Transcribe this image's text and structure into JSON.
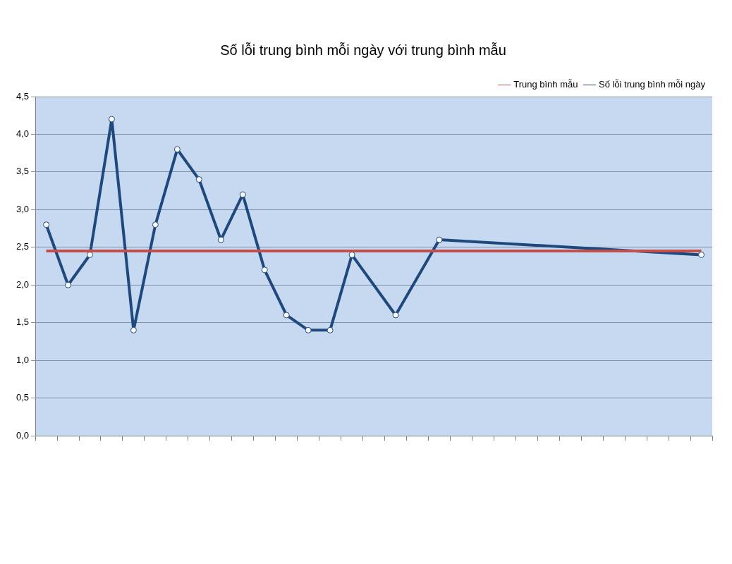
{
  "chart_data": {
    "type": "line",
    "title": "Số lỗi trung bình mỗi ngày với trung bình mẫu",
    "categories": [
      null,
      null,
      null,
      null,
      null,
      null,
      null,
      null,
      null,
      null,
      null,
      null,
      null,
      null,
      null,
      null,
      null,
      null,
      null,
      null,
      null,
      null,
      null,
      null,
      null,
      null,
      null,
      null,
      null,
      null,
      null
    ],
    "series": [
      {
        "name": "Số lỗi trung bình mỗi ngày",
        "color": "#1f497d",
        "marker": "circle",
        "values": [
          2.8,
          2.0,
          2.4,
          4.2,
          1.4,
          2.8,
          3.8,
          3.4,
          2.6,
          3.2,
          2.2,
          1.6,
          1.4,
          1.4,
          2.4,
          null,
          1.6,
          null,
          2.6,
          null,
          null,
          null,
          null,
          null,
          null,
          null,
          null,
          null,
          null,
          null,
          2.4
        ]
      },
      {
        "name": "Trung bình mẫu",
        "color": "#c0504d",
        "marker": "none",
        "values": [
          2.45,
          2.45,
          2.45,
          2.45,
          2.45,
          2.45,
          2.45,
          2.45,
          2.45,
          2.45,
          2.45,
          2.45,
          2.45,
          2.45,
          2.45,
          2.45,
          2.45,
          2.45,
          2.45,
          2.45,
          2.45,
          2.45,
          2.45,
          2.45,
          2.45,
          2.45,
          2.45,
          2.45,
          2.45,
          2.45,
          2.45
        ]
      }
    ],
    "ylim": [
      0,
      4.5
    ],
    "yticks": [
      {
        "value": 0,
        "label": "0,0"
      },
      {
        "value": 0.5,
        "label": "0,5"
      },
      {
        "value": 1,
        "label": "1,0"
      },
      {
        "value": 1.5,
        "label": "1,5"
      },
      {
        "value": 2,
        "label": "2,0"
      },
      {
        "value": 2.5,
        "label": "2,5"
      },
      {
        "value": 3,
        "label": "3,0"
      },
      {
        "value": 3.5,
        "label": "3,5"
      },
      {
        "value": 4,
        "label": "4,0"
      },
      {
        "value": 4.5,
        "label": "4,5"
      }
    ],
    "grid": "y",
    "legend": "top right",
    "tick_labels": "y",
    "line_style": "solid"
  }
}
